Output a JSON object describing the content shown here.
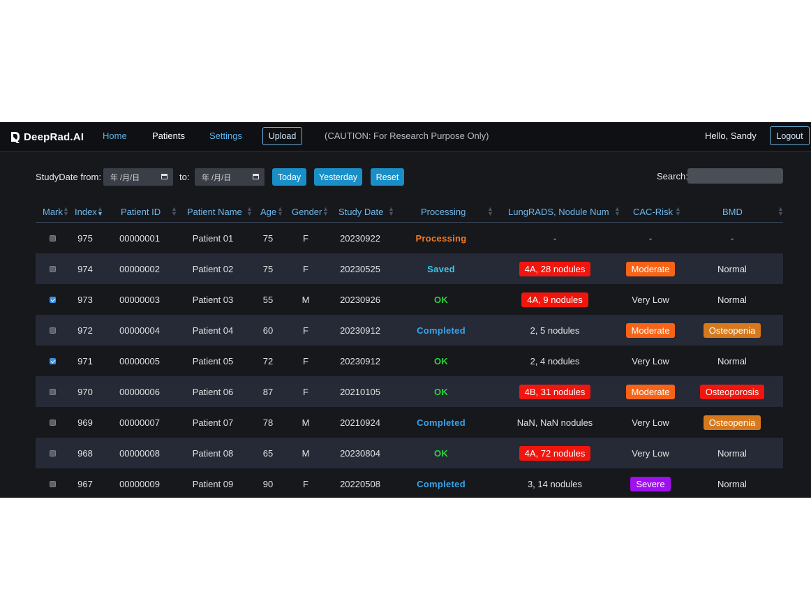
{
  "nav": {
    "brand": "DeepRad.AI",
    "home": "Home",
    "patients": "Patients",
    "settings": "Settings",
    "upload": "Upload",
    "caution": "(CAUTION: For Research Purpose Only)",
    "greeting": "Hello, Sandy",
    "logout": "Logout"
  },
  "filter": {
    "from_label": "StudyDate from:",
    "to_label": "to:",
    "date_placeholder": "年 /月/日",
    "today": "Today",
    "yesterday": "Yesterday",
    "reset": "Reset",
    "search_label": "Search:"
  },
  "columns": [
    "Mark",
    "Index",
    "Patient ID",
    "Patient Name",
    "Age",
    "Gender",
    "Study Date",
    "Processing",
    "LungRADS, Nodule Num",
    "CAC-Risk",
    "BMD"
  ],
  "colors": {
    "processing": "#f07c28",
    "saved": "#3ec6e8",
    "ok": "#2bd43b",
    "completed": "#3ba3e8",
    "red": "#f0160e",
    "orange": "#f76418",
    "amber": "#d6791d",
    "purple": "#a00ff0"
  },
  "rows": [
    {
      "checked": false,
      "index": "975",
      "pid": "00000001",
      "name": "Patient 01",
      "age": "75",
      "gender": "F",
      "date": "20230922",
      "status": "Processing",
      "status_type": "processing",
      "lung": "-",
      "lung_badge": "",
      "cac": "-",
      "cac_badge": "",
      "bmd": "-",
      "bmd_badge": ""
    },
    {
      "checked": false,
      "index": "974",
      "pid": "00000002",
      "name": "Patient 02",
      "age": "75",
      "gender": "F",
      "date": "20230525",
      "status": "Saved",
      "status_type": "saved",
      "lung": "4A, 28 nodules",
      "lung_badge": "red",
      "cac": "Moderate",
      "cac_badge": "orange",
      "bmd": "Normal",
      "bmd_badge": ""
    },
    {
      "checked": true,
      "index": "973",
      "pid": "00000003",
      "name": "Patient 03",
      "age": "55",
      "gender": "M",
      "date": "20230926",
      "status": "OK",
      "status_type": "ok",
      "lung": "4A, 9 nodules",
      "lung_badge": "red",
      "cac": "Very Low",
      "cac_badge": "",
      "bmd": "Normal",
      "bmd_badge": ""
    },
    {
      "checked": false,
      "index": "972",
      "pid": "00000004",
      "name": "Patient 04",
      "age": "60",
      "gender": "F",
      "date": "20230912",
      "status": "Completed",
      "status_type": "completed",
      "lung": "2, 5 nodules",
      "lung_badge": "",
      "cac": "Moderate",
      "cac_badge": "orange",
      "bmd": "Osteopenia",
      "bmd_badge": "amber"
    },
    {
      "checked": true,
      "index": "971",
      "pid": "00000005",
      "name": "Patient 05",
      "age": "72",
      "gender": "F",
      "date": "20230912",
      "status": "OK",
      "status_type": "ok",
      "lung": "2, 4 nodules",
      "lung_badge": "",
      "cac": "Very Low",
      "cac_badge": "",
      "bmd": "Normal",
      "bmd_badge": ""
    },
    {
      "checked": false,
      "index": "970",
      "pid": "00000006",
      "name": "Patient 06",
      "age": "87",
      "gender": "F",
      "date": "20210105",
      "status": "OK",
      "status_type": "ok",
      "lung": "4B, 31 nodules",
      "lung_badge": "red",
      "cac": "Moderate",
      "cac_badge": "orange",
      "bmd": "Osteoporosis",
      "bmd_badge": "red"
    },
    {
      "checked": false,
      "index": "969",
      "pid": "00000007",
      "name": "Patient 07",
      "age": "78",
      "gender": "M",
      "date": "20210924",
      "status": "Completed",
      "status_type": "completed",
      "lung": "NaN, NaN nodules",
      "lung_badge": "",
      "cac": "Very Low",
      "cac_badge": "",
      "bmd": "Osteopenia",
      "bmd_badge": "amber"
    },
    {
      "checked": false,
      "index": "968",
      "pid": "00000008",
      "name": "Patient 08",
      "age": "65",
      "gender": "M",
      "date": "20230804",
      "status": "OK",
      "status_type": "ok",
      "lung": "4A, 72 nodules",
      "lung_badge": "red",
      "cac": "Very Low",
      "cac_badge": "",
      "bmd": "Normal",
      "bmd_badge": ""
    },
    {
      "checked": false,
      "index": "967",
      "pid": "00000009",
      "name": "Patient 09",
      "age": "90",
      "gender": "F",
      "date": "20220508",
      "status": "Completed",
      "status_type": "completed",
      "lung": "3, 14 nodules",
      "lung_badge": "",
      "cac": "Severe",
      "cac_badge": "purple",
      "bmd": "Normal",
      "bmd_badge": ""
    }
  ]
}
